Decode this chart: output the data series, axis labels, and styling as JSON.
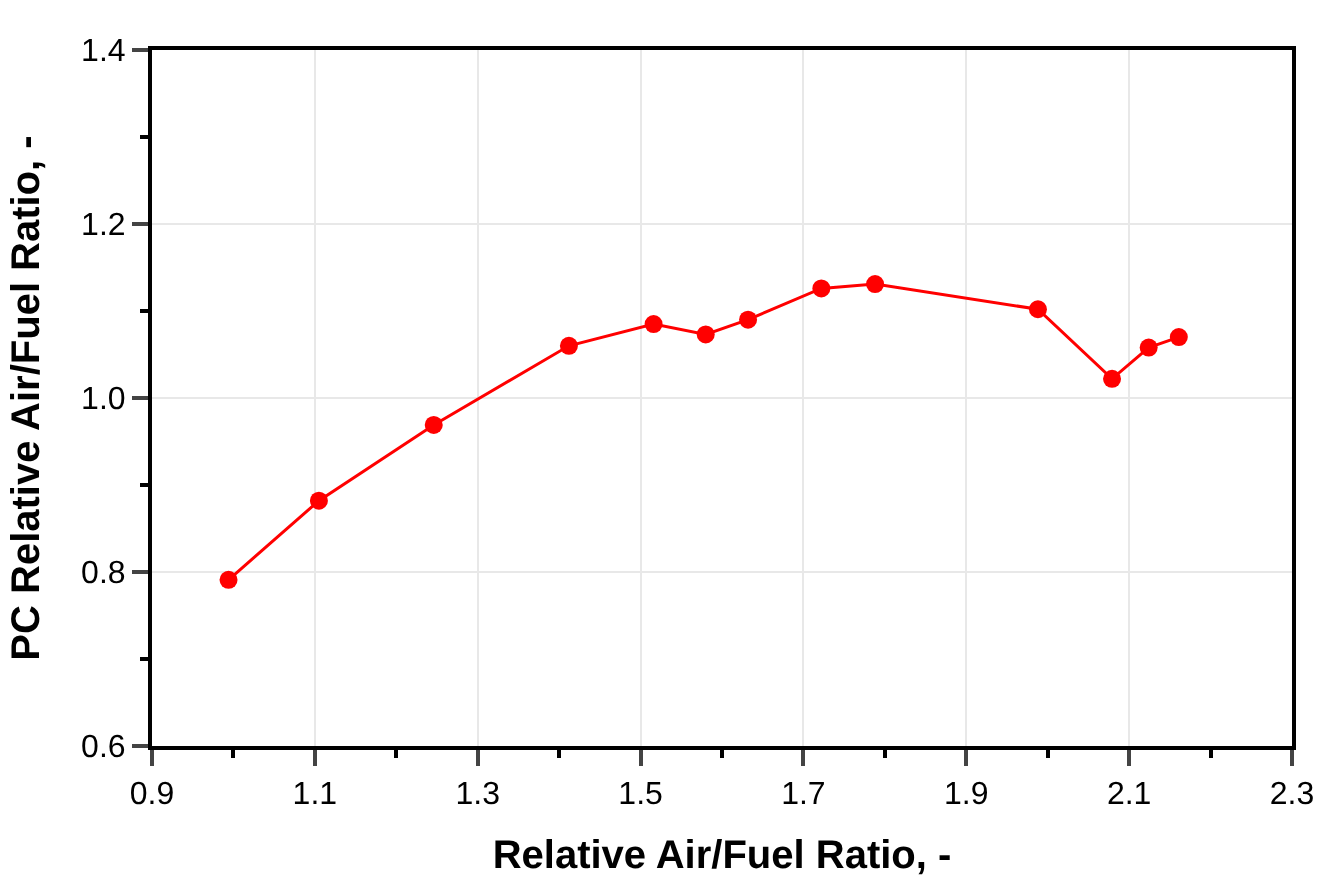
{
  "chart_data": {
    "type": "line",
    "xlabel": "Relative Air/Fuel Ratio, -",
    "ylabel": "PC Relative Air/Fuel Ratio, -",
    "x": [
      0.994,
      1.105,
      1.246,
      1.412,
      1.516,
      1.58,
      1.632,
      1.722,
      1.788,
      1.988,
      2.079,
      2.124,
      2.161
    ],
    "series": [
      {
        "color": "#ff0000",
        "values": [
          0.791,
          0.882,
          0.969,
          1.06,
          1.085,
          1.073,
          1.09,
          1.126,
          1.131,
          1.102,
          1.022,
          1.058,
          1.07
        ]
      }
    ],
    "xlim": [
      0.9,
      2.3
    ],
    "xticks": [
      0.9,
      1.1,
      1.3,
      1.5,
      1.7,
      1.9,
      2.1,
      2.3
    ],
    "ylim": [
      0.6,
      1.4
    ],
    "yticks": [
      0.6,
      0.8,
      {
        "value": 1.0,
        "label": "1.0"
      },
      1.2,
      1.4
    ],
    "grid": true,
    "marker": "circle",
    "line_style": "solid",
    "legend": false
  }
}
